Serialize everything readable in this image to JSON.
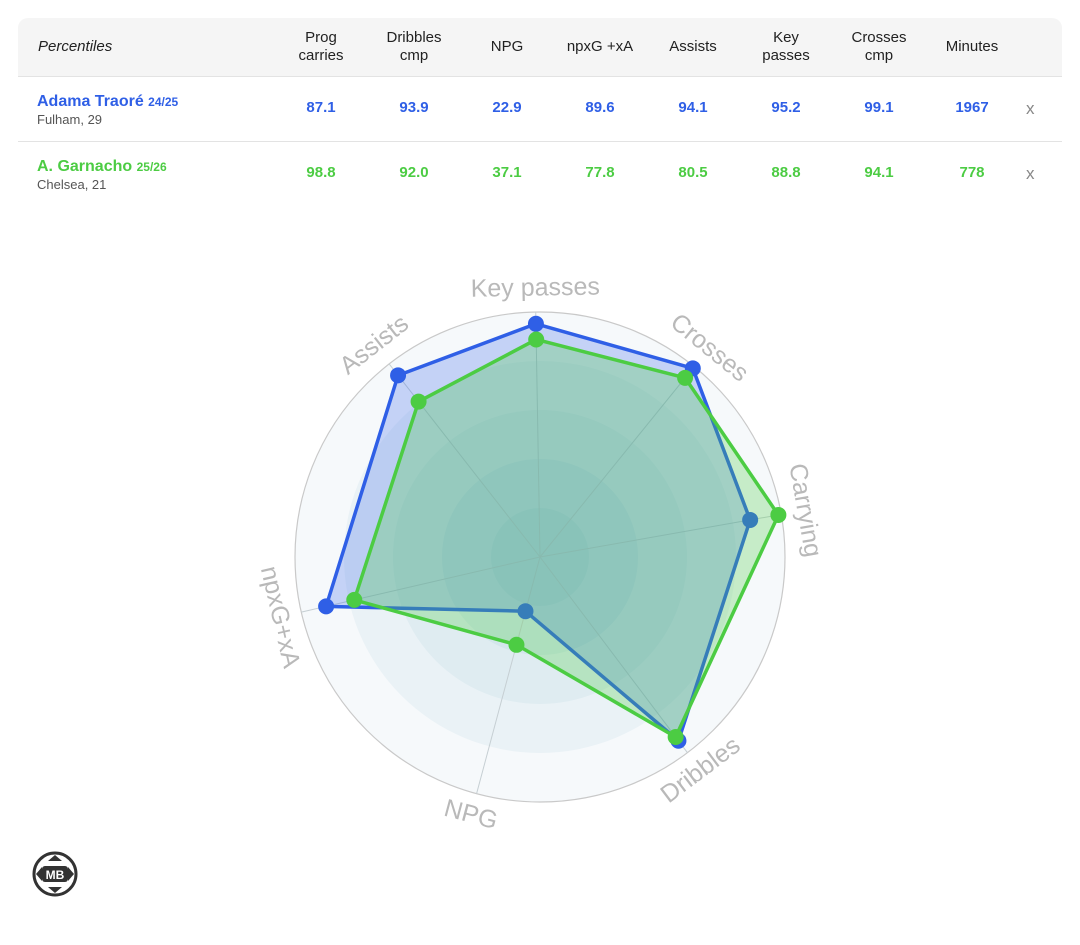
{
  "table": {
    "header_label": "Percentiles",
    "columns": [
      {
        "line1": "Prog",
        "line2": "carries"
      },
      {
        "line1": "Dribbles",
        "line2": "cmp"
      },
      {
        "line1": "NPG",
        "line2": ""
      },
      {
        "line1": "npxG +xA",
        "line2": ""
      },
      {
        "line1": "Assists",
        "line2": ""
      },
      {
        "line1": "Key",
        "line2": "passes"
      },
      {
        "line1": "Crosses",
        "line2": "cmp"
      },
      {
        "line1": "Minutes",
        "line2": ""
      }
    ],
    "players": [
      {
        "name": "Adama Traoré",
        "season": "24/25",
        "meta": "Fulham, 29",
        "color": "#2f5fe6",
        "values": [
          "87.1",
          "93.9",
          "22.9",
          "89.6",
          "94.1",
          "95.2",
          "99.1",
          "1967"
        ],
        "remove_label": "x"
      },
      {
        "name": "A. Garnacho",
        "season": "25/26",
        "meta": "Chelsea, 21",
        "color": "#4ccc43",
        "values": [
          "98.8",
          "92.0",
          "37.1",
          "77.8",
          "80.5",
          "88.8",
          "94.1",
          "778"
        ],
        "remove_label": "x"
      }
    ]
  },
  "chart_data": {
    "type": "radar",
    "axes": [
      "Key passes",
      "Crosses",
      "Carrying",
      "Dribbles",
      "NPG",
      "npxG+xA",
      "Assists"
    ],
    "range": [
      0,
      100
    ],
    "series": [
      {
        "values": [
          95.2,
          99.1,
          87.1,
          93.9,
          22.9,
          89.6,
          94.1
        ],
        "color": "#2f5fe6"
      },
      {
        "values": [
          88.8,
          94.1,
          98.8,
          92.0,
          37.1,
          77.8,
          80.5
        ],
        "color": "#4ccc43"
      }
    ]
  },
  "logo": {
    "text": "MB"
  }
}
